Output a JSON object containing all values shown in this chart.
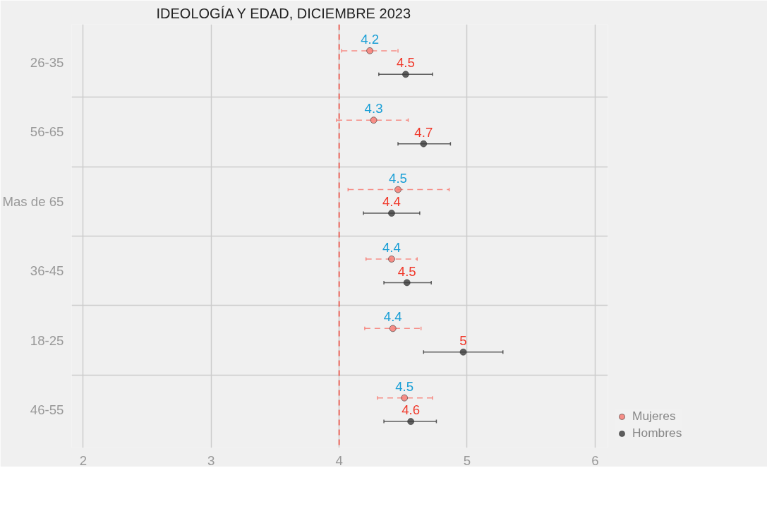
{
  "chart_data": {
    "type": "scatter",
    "title": "IDEOLOGÍA Y EDAD, DICIEMBRE 2023",
    "orientation": "horizontal",
    "categories": [
      "26-35",
      "56-65",
      "Mas de 65",
      "36-45",
      "18-25",
      "46-55"
    ],
    "series": [
      {
        "name": "Mujeres",
        "color": "#f8766d",
        "line_style": "dashed",
        "values": [
          4.24,
          4.27,
          4.46,
          4.41,
          4.42,
          4.51
        ],
        "errors": [
          [
            4.02,
            4.46
          ],
          [
            3.98,
            4.54
          ],
          [
            4.07,
            4.86
          ],
          [
            4.21,
            4.61
          ],
          [
            4.2,
            4.64
          ],
          [
            4.3,
            4.73
          ]
        ],
        "value_labels": [
          "4.2",
          "4.3",
          "4.5",
          "4.4",
          "4.4",
          "4.5"
        ]
      },
      {
        "name": "Hombres",
        "color": "#3a3a3a",
        "line_style": "solid",
        "values": [
          4.52,
          4.66,
          4.41,
          4.53,
          4.97,
          4.56
        ],
        "errors": [
          [
            4.31,
            4.73
          ],
          [
            4.46,
            4.87
          ],
          [
            4.19,
            4.63
          ],
          [
            4.35,
            4.72
          ],
          [
            4.66,
            5.28
          ],
          [
            4.35,
            4.76
          ]
        ],
        "value_labels": [
          "4.5",
          "4.7",
          "4.4",
          "4.5",
          "5",
          "4.6"
        ]
      }
    ],
    "xlim": [
      1.91,
      6.1
    ],
    "xticks": [
      2,
      3,
      4,
      5,
      6
    ],
    "ref_lines": [
      {
        "axis": "x",
        "value": 4,
        "color": "#f0392b",
        "line_style": "dashed"
      }
    ],
    "grid": true,
    "legend": "right",
    "marker": "circle"
  }
}
